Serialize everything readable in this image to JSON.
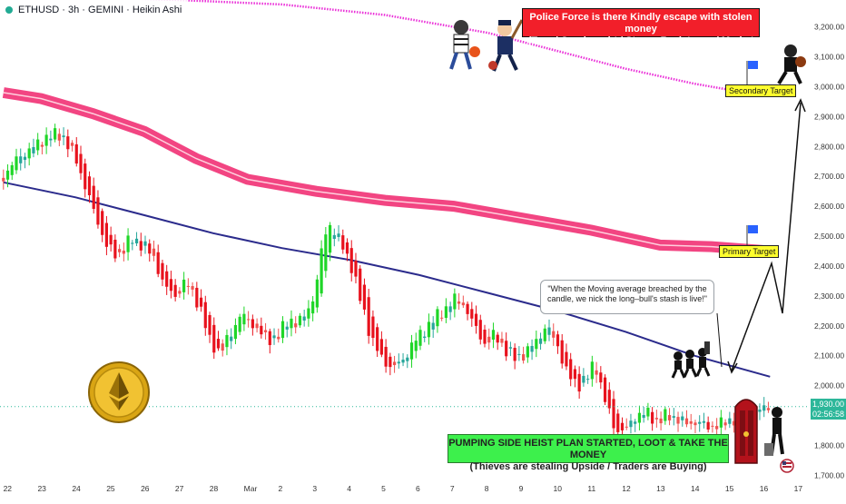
{
  "header": {
    "symbol_line": "ETHUSD · 3h · GEMINI · Heikin Ashi"
  },
  "banners": {
    "top_line1": "Police Force is there Kindly escape with stolen money",
    "top_line2": "(Trap / Overbought / Strong Resistance / Market Pullback)",
    "bottom_line1": "PUMPING SIDE HEIST PLAN STARTED, LOOT & TAKE THE MONEY",
    "bottom_line2": "(Thieves are stealing Upside / Traders are Buying)"
  },
  "targets": {
    "secondary": "Secondary Target",
    "primary": "Primary Target"
  },
  "quote": {
    "text": "\"When the Moving average breached by the candle, we nick the long–bull's stash is live!\""
  },
  "price_badge": {
    "price": "1,930.00",
    "countdown": "02:56:58"
  },
  "colors": {
    "up": "#26a69a",
    "up_bright": "#1fd628",
    "down": "#ef5350",
    "down_bright": "#e8121d",
    "ma_top": "#ea2fd8",
    "ma_band": "#f0246c",
    "ma_blue": "#2b2b8c",
    "current_line": "#2db79a",
    "arrow": "#111111",
    "flag": "#2962ff"
  },
  "icons": [
    "ethereum-coin-icon",
    "thief-icon",
    "police-icon",
    "flag-icon",
    "vault-door-icon",
    "us-flag-icon"
  ],
  "chart_data": {
    "type": "candlestick",
    "style": "Heikin Ashi",
    "timeframe": "3h",
    "ylim": [
      1680,
      3290
    ],
    "yticks": [
      1700,
      1800,
      1900,
      2000,
      2100,
      2200,
      2300,
      2400,
      2500,
      2600,
      2700,
      2800,
      2900,
      3000,
      3100,
      3200
    ],
    "ytick_labels": [
      "1,700.00",
      "1,800.00",
      "1,900.00",
      "2,000.00",
      "2,100.00",
      "2,200.00",
      "2,300.00",
      "2,400.00",
      "2,500.00",
      "2,600.00",
      "2,700.00",
      "2,800.00",
      "2,900.00",
      "3,000.00",
      "3,100.00",
      "3,200.00"
    ],
    "x_labels": [
      "22",
      "23",
      "24",
      "25",
      "26",
      "27",
      "28",
      "Mar",
      "2",
      "3",
      "4",
      "5",
      "6",
      "7",
      "8",
      "9",
      "10",
      "11",
      "12",
      "13",
      "14",
      "15",
      "16",
      "17"
    ],
    "current_price": 1930,
    "close_path": [
      [
        21.9,
        2700
      ],
      [
        22.3,
        2760
      ],
      [
        22.8,
        2800
      ],
      [
        23.2,
        2835
      ],
      [
        23.6,
        2840
      ],
      [
        24.0,
        2760
      ],
      [
        24.3,
        2660
      ],
      [
        24.6,
        2560
      ],
      [
        24.9,
        2470
      ],
      [
        25.2,
        2430
      ],
      [
        25.6,
        2490
      ],
      [
        26.0,
        2470
      ],
      [
        26.3,
        2420
      ],
      [
        26.6,
        2330
      ],
      [
        26.9,
        2300
      ],
      [
        27.2,
        2350
      ],
      [
        27.6,
        2270
      ],
      [
        27.9,
        2150
      ],
      [
        28.2,
        2110
      ],
      [
        28.5,
        2170
      ],
      [
        28.8,
        2240
      ],
      [
        29.2,
        2200
      ],
      [
        29.6,
        2150
      ],
      [
        29.9,
        2170
      ],
      [
        30.2,
        2220
      ],
      [
        30.5,
        2210
      ],
      [
        30.8,
        2260
      ],
      [
        31.0,
        2330
      ],
      [
        31.2,
        2490
      ],
      [
        31.4,
        2540
      ],
      [
        31.7,
        2480
      ],
      [
        32.0,
        2410
      ],
      [
        32.3,
        2280
      ],
      [
        32.6,
        2160
      ],
      [
        32.9,
        2090
      ],
      [
        33.2,
        2060
      ],
      [
        33.5,
        2080
      ],
      [
        33.8,
        2140
      ],
      [
        34.1,
        2180
      ],
      [
        34.4,
        2220
      ],
      [
        34.7,
        2250
      ],
      [
        35.0,
        2290
      ],
      [
        35.3,
        2270
      ],
      [
        35.6,
        2200
      ],
      [
        35.9,
        2140
      ],
      [
        36.2,
        2170
      ],
      [
        36.5,
        2120
      ],
      [
        36.8,
        2090
      ],
      [
        37.1,
        2110
      ],
      [
        37.4,
        2150
      ],
      [
        37.7,
        2200
      ],
      [
        38.0,
        2140
      ],
      [
        38.3,
        2040
      ],
      [
        38.6,
        2000
      ],
      [
        38.9,
        2030
      ],
      [
        39.1,
        2080
      ],
      [
        39.4,
        1950
      ],
      [
        39.7,
        1850
      ],
      [
        40.0,
        1850
      ],
      [
        40.3,
        1900
      ],
      [
        40.6,
        1910
      ],
      [
        40.9,
        1880
      ],
      [
        41.2,
        1900
      ],
      [
        41.5,
        1890
      ],
      [
        41.8,
        1870
      ],
      [
        42.1,
        1880
      ],
      [
        42.4,
        1860
      ],
      [
        42.7,
        1870
      ],
      [
        43.0,
        1880
      ],
      [
        43.3,
        1900
      ],
      [
        43.6,
        1910
      ],
      [
        43.9,
        1920
      ],
      [
        44.2,
        1930
      ]
    ],
    "moving_averages": [
      {
        "color": "#ea2fd8",
        "points": [
          [
            21.9,
            3320
          ],
          [
            24,
            3300
          ],
          [
            27,
            3290
          ],
          [
            30,
            3275
          ],
          [
            33,
            3240
          ],
          [
            36,
            3180
          ],
          [
            38,
            3120
          ],
          [
            40,
            3060
          ],
          [
            42,
            3010
          ],
          [
            43,
            2990
          ],
          [
            44.2,
            3000
          ]
        ]
      },
      {
        "color": "#f0246c",
        "points": [
          [
            21.9,
            2980
          ],
          [
            23,
            2960
          ],
          [
            24.5,
            2910
          ],
          [
            26,
            2850
          ],
          [
            27.5,
            2760
          ],
          [
            29,
            2690
          ],
          [
            31,
            2650
          ],
          [
            33,
            2620
          ],
          [
            35,
            2600
          ],
          [
            37,
            2560
          ],
          [
            39,
            2520
          ],
          [
            41,
            2470
          ],
          [
            42.5,
            2465
          ],
          [
            44.2,
            2450
          ]
        ]
      },
      {
        "color": "#2b2b8c",
        "points": [
          [
            21.9,
            2680
          ],
          [
            24,
            2630
          ],
          [
            26,
            2570
          ],
          [
            28,
            2510
          ],
          [
            30,
            2460
          ],
          [
            32,
            2420
          ],
          [
            34,
            2370
          ],
          [
            36,
            2310
          ],
          [
            38,
            2250
          ],
          [
            40,
            2180
          ],
          [
            42,
            2100
          ],
          [
            44.2,
            2030
          ]
        ]
      }
    ]
  }
}
